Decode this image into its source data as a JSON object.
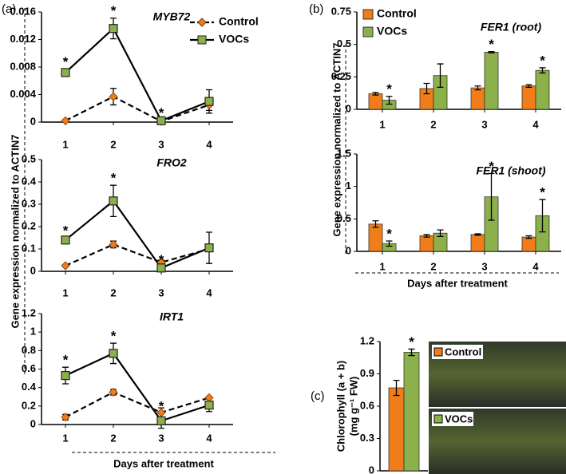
{
  "panels": [
    {
      "label": "(a)",
      "ylabel": "Gene expression normalized to ACTIN7",
      "xlabel": "Days after treatment"
    },
    {
      "label": "(b)",
      "ylabel": "Gene expression normalized to ACTIN7",
      "xlabel": "Days after treatment"
    },
    {
      "label": "(c)"
    }
  ],
  "chart_data": [
    {
      "type": "line",
      "title": "MYB72",
      "categories": [
        "1",
        "2",
        "3",
        "4"
      ],
      "legend": true,
      "ylim": [
        0,
        0.016
      ],
      "yticks": [
        0,
        0.004,
        0.008,
        0.012,
        0.016
      ],
      "series": [
        {
          "name": "Control",
          "color": "#f07d1a",
          "marker": "diamond",
          "linestyle": "dashed",
          "values": [
            0.0002,
            0.0037,
            0.0001,
            0.0025
          ],
          "errors": [
            0.0001,
            0.0012,
            0.0001,
            0.0008
          ],
          "significance": [
            null,
            null,
            null,
            null
          ]
        },
        {
          "name": "VOCs",
          "color": "#8cb04a",
          "marker": "square",
          "linestyle": "solid",
          "values": [
            0.0072,
            0.0136,
            0.0002,
            0.003
          ],
          "errors": [
            0.0005,
            0.0015,
            0.0001,
            0.0017
          ],
          "significance": [
            "*",
            "*",
            "*",
            null
          ]
        }
      ]
    },
    {
      "type": "line",
      "title": "FRO2",
      "categories": [
        "1",
        "2",
        "3",
        "4"
      ],
      "legend": false,
      "ylim": [
        0,
        0.5
      ],
      "yticks": [
        0,
        0.1,
        0.2,
        0.3,
        0.4,
        0.5
      ],
      "series": [
        {
          "name": "Control",
          "color": "#f07d1a",
          "marker": "diamond",
          "linestyle": "dashed",
          "values": [
            0.025,
            0.12,
            0.04,
            0.1
          ],
          "errors": [
            0.005,
            0.015,
            0.01,
            0.01
          ],
          "significance": [
            null,
            null,
            null,
            null
          ]
        },
        {
          "name": "VOCs",
          "color": "#8cb04a",
          "marker": "square",
          "linestyle": "solid",
          "values": [
            0.14,
            0.315,
            0.015,
            0.105
          ],
          "errors": [
            0.01,
            0.07,
            0.005,
            0.07
          ],
          "significance": [
            "*",
            "*",
            "*",
            null
          ]
        }
      ]
    },
    {
      "type": "line",
      "title": "IRT1",
      "categories": [
        "1",
        "2",
        "3",
        "4"
      ],
      "legend": false,
      "ylim": [
        0,
        1.2
      ],
      "yticks": [
        0,
        0.2,
        0.4,
        0.6,
        0.8,
        1,
        1.2
      ],
      "series": [
        {
          "name": "Control",
          "color": "#f07d1a",
          "marker": "diamond",
          "linestyle": "dashed",
          "values": [
            0.08,
            0.35,
            0.13,
            0.29
          ],
          "errors": [
            0.03,
            0.03,
            0.05,
            0.01
          ],
          "significance": [
            null,
            null,
            null,
            null
          ]
        },
        {
          "name": "VOCs",
          "color": "#8cb04a",
          "marker": "square",
          "linestyle": "solid",
          "values": [
            0.53,
            0.77,
            0.04,
            0.21
          ],
          "errors": [
            0.09,
            0.11,
            0.08,
            0.07
          ],
          "significance": [
            "*",
            "*",
            "*",
            null
          ]
        }
      ]
    },
    {
      "type": "bar",
      "title": "FER1 (root)",
      "categories": [
        "1",
        "2",
        "3",
        "4"
      ],
      "legend": true,
      "ylim": [
        0,
        0.75
      ],
      "yticks": [
        0,
        0.25,
        0.5,
        0.75
      ],
      "series": [
        {
          "name": "Control",
          "color": "#f07d1a",
          "values": [
            0.12,
            0.16,
            0.165,
            0.18
          ],
          "errors": [
            0.01,
            0.04,
            0.015,
            0.01
          ],
          "significance": [
            null,
            null,
            null,
            null
          ]
        },
        {
          "name": "VOCs",
          "color": "#8cb04a",
          "values": [
            0.07,
            0.26,
            0.44,
            0.3
          ],
          "errors": [
            0.03,
            0.09,
            0.005,
            0.02
          ],
          "significance": [
            "*",
            null,
            "*",
            "*"
          ]
        }
      ]
    },
    {
      "type": "bar",
      "title": "FER1 (shoot)",
      "categories": [
        "1",
        "2",
        "3",
        "4"
      ],
      "legend": false,
      "ylim": [
        0,
        1.5
      ],
      "yticks": [
        0,
        0.5,
        1,
        1.5
      ],
      "series": [
        {
          "name": "Control",
          "color": "#f07d1a",
          "values": [
            0.42,
            0.24,
            0.26,
            0.22
          ],
          "errors": [
            0.05,
            0.02,
            0.01,
            0.02
          ],
          "significance": [
            null,
            null,
            null,
            null
          ]
        },
        {
          "name": "VOCs",
          "color": "#8cb04a",
          "values": [
            0.12,
            0.28,
            0.84,
            0.55
          ],
          "errors": [
            0.04,
            0.05,
            0.36,
            0.25
          ],
          "significance": [
            "*",
            null,
            "*",
            "*"
          ]
        }
      ]
    },
    {
      "type": "bar",
      "ylabel": [
        "Chlorophyll (a + b)",
        "(mg g⁻¹ FW)"
      ],
      "legend": false,
      "ylim": [
        0,
        1.2
      ],
      "yticks": [
        0,
        0.3,
        0.6,
        0.9,
        1.2
      ],
      "series": [
        {
          "name": "Control",
          "color": "#f07d1a",
          "values": [
            0.77
          ],
          "errors": [
            0.07
          ],
          "significance": [
            null
          ]
        },
        {
          "name": "VOCs",
          "color": "#8cb04a",
          "values": [
            1.1
          ],
          "errors": [
            0.03
          ],
          "significance": [
            "*"
          ]
        }
      ]
    }
  ],
  "photos": [
    {
      "label": "Control"
    },
    {
      "label": "VOCs"
    }
  ]
}
